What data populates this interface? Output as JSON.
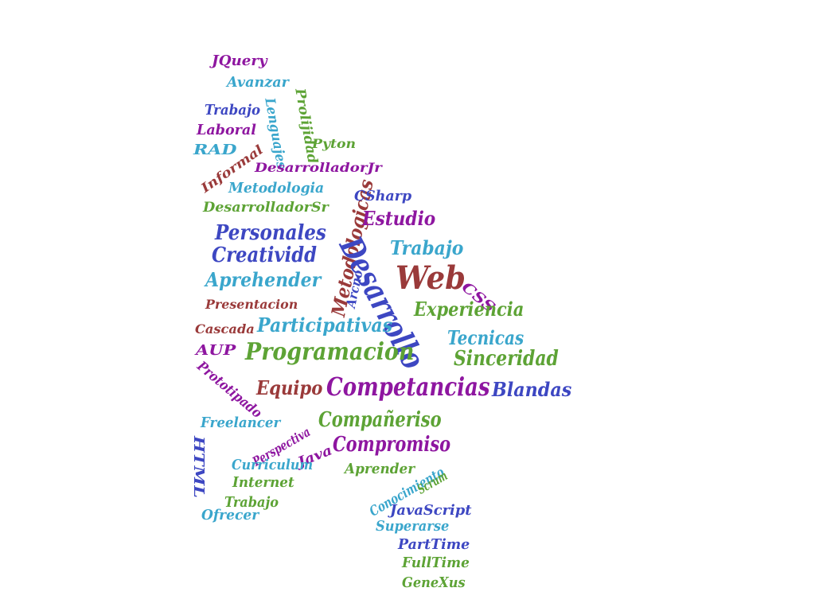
{
  "colors": {
    "purple": "#8e16a0",
    "cyan": "#3aa6cc",
    "blue": "#3d47c2",
    "green": "#5da335",
    "red": "#9a3a3a"
  },
  "words": [
    {
      "text": "JQuery",
      "color": "purple"
    },
    {
      "text": "Avanzar",
      "color": "cyan"
    },
    {
      "text": "Prolijidad",
      "color": "green"
    },
    {
      "text": "Trabajo",
      "color": "blue"
    },
    {
      "text": "Lenguajes",
      "color": "cyan"
    },
    {
      "text": "Laboral",
      "color": "purple"
    },
    {
      "text": "RAD",
      "color": "cyan"
    },
    {
      "text": "Pyton",
      "color": "green"
    },
    {
      "text": "Informal",
      "color": "red"
    },
    {
      "text": "DesarrolladorJr",
      "color": "purple"
    },
    {
      "text": "Metodologia",
      "color": "cyan"
    },
    {
      "text": "Metodologicas",
      "color": "red"
    },
    {
      "text": "CSharp",
      "color": "blue"
    },
    {
      "text": "DesarrolladorSr",
      "color": "green"
    },
    {
      "text": "Estudio",
      "color": "purple"
    },
    {
      "text": "Personales",
      "color": "blue"
    },
    {
      "text": "Trabajo",
      "color": "cyan"
    },
    {
      "text": "Creatividd",
      "color": "blue"
    },
    {
      "text": "Desarrollo",
      "color": "blue"
    },
    {
      "text": "Web",
      "color": "red"
    },
    {
      "text": "Aprehender",
      "color": "cyan"
    },
    {
      "text": "Arcno",
      "color": "blue"
    },
    {
      "text": "CSS",
      "color": "purple"
    },
    {
      "text": "Presentacion",
      "color": "red"
    },
    {
      "text": "Experiencia",
      "color": "green"
    },
    {
      "text": "Cascada",
      "color": "red"
    },
    {
      "text": "Participativas",
      "color": "cyan"
    },
    {
      "text": "Tecnicas",
      "color": "cyan"
    },
    {
      "text": "AUP",
      "color": "purple"
    },
    {
      "text": "Programacion",
      "color": "green"
    },
    {
      "text": "Sinceridad",
      "color": "green"
    },
    {
      "text": "Prototipado",
      "color": "purple"
    },
    {
      "text": "Equipo",
      "color": "red"
    },
    {
      "text": "Competancias",
      "color": "purple"
    },
    {
      "text": "Blandas",
      "color": "blue"
    },
    {
      "text": "Freelancer",
      "color": "cyan"
    },
    {
      "text": "Perspectiva",
      "color": "purple"
    },
    {
      "text": "Compañeriso",
      "color": "green"
    },
    {
      "text": "HTML",
      "color": "blue"
    },
    {
      "text": "Java",
      "color": "purple"
    },
    {
      "text": "Compromiso",
      "color": "purple"
    },
    {
      "text": "Curriculum",
      "color": "cyan"
    },
    {
      "text": "Aprender",
      "color": "green"
    },
    {
      "text": "Conocimiento",
      "color": "cyan"
    },
    {
      "text": "Internet",
      "color": "green"
    },
    {
      "text": "Scrum",
      "color": "green"
    },
    {
      "text": "Trabajo",
      "color": "green"
    },
    {
      "text": "JavaScript",
      "color": "blue"
    },
    {
      "text": "Ofrecer",
      "color": "cyan"
    },
    {
      "text": "Superarse",
      "color": "cyan"
    },
    {
      "text": "PartTime",
      "color": "blue"
    },
    {
      "text": "FullTime",
      "color": "green"
    },
    {
      "text": "GeneXus",
      "color": "green"
    }
  ]
}
